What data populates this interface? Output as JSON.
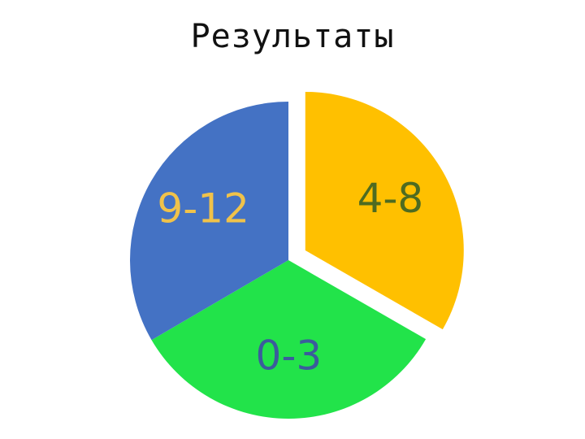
{
  "chart_data": {
    "type": "pie",
    "title": "Результаты",
    "slices": [
      {
        "label": "4-8",
        "value": 33.3,
        "color": "#FFC000",
        "label_color": "#4E6B21",
        "exploded": true
      },
      {
        "label": "0-3",
        "value": 33.3,
        "color": "#22E34A",
        "label_color": "#3B5C9C",
        "exploded": false
      },
      {
        "label": "9-12",
        "value": 33.4,
        "color": "#4472C4",
        "label_color": "#F0C24A",
        "exploded": false
      }
    ],
    "start_angle_deg": 0,
    "direction": "clockwise",
    "legend": "none"
  }
}
